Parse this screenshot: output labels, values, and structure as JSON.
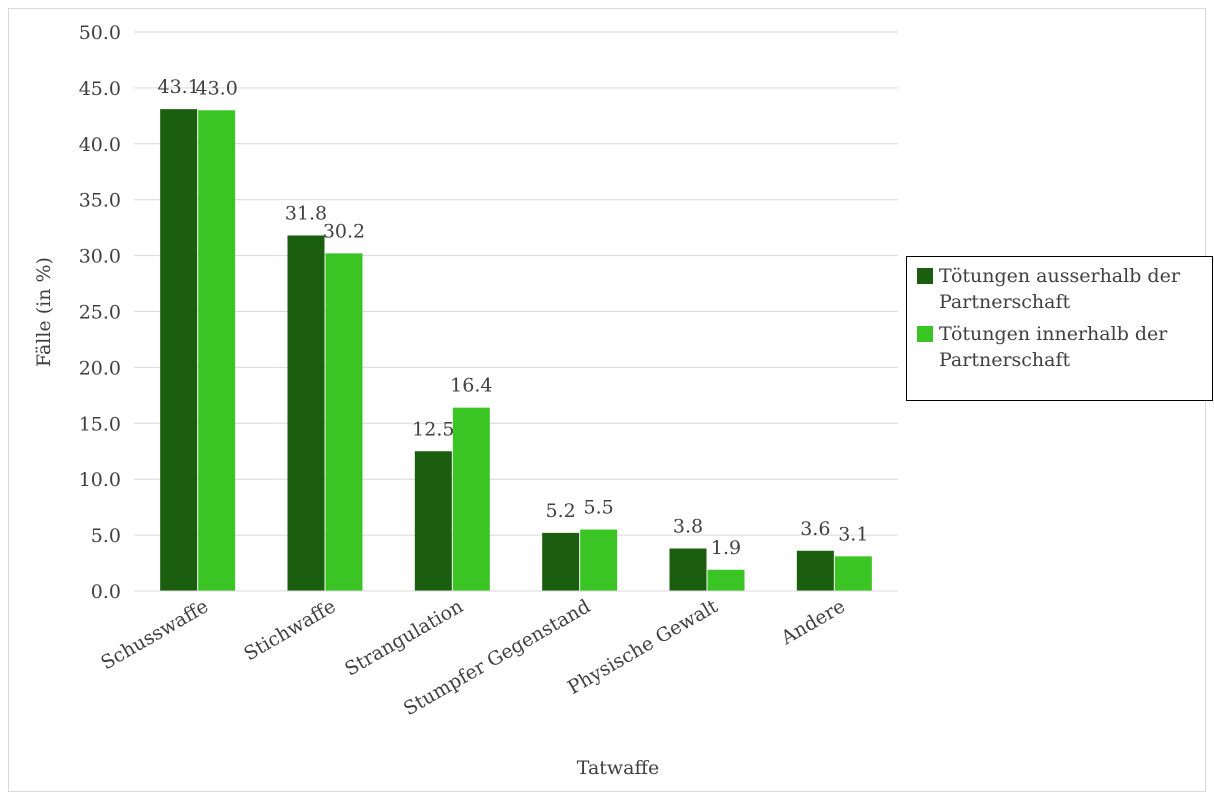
{
  "chart_data": {
    "type": "bar",
    "categories": [
      "Schusswaffe",
      "Stichwaffe",
      "Strangulation",
      "Stumpfer Gegenstand",
      "Physische Gewalt",
      "Andere"
    ],
    "series": [
      {
        "name": "Tötungen ausserhalb der Partnerschaft",
        "color": "#1b5e0f",
        "values": [
          43.1,
          31.8,
          12.5,
          5.2,
          3.8,
          3.6
        ],
        "labels": [
          "43.1",
          "31.8",
          "12.5",
          "5.2",
          "3.8",
          "3.6"
        ]
      },
      {
        "name": "Tötungen innerhalb der Partnerschaft",
        "color": "#3ac524",
        "values": [
          43.0,
          30.2,
          16.4,
          5.5,
          1.9,
          3.1
        ],
        "labels": [
          "43.0",
          "30.2",
          "16.4",
          "5.5",
          "1.9",
          "3.1"
        ]
      }
    ],
    "xlabel": "Tatwaffe",
    "ylabel": "Fälle (in %)",
    "ylim": [
      0,
      50
    ],
    "yticks": [
      "0.0",
      "5.0",
      "10.0",
      "15.0",
      "20.0",
      "25.0",
      "30.0",
      "35.0",
      "40.0",
      "45.0",
      "50.0"
    ],
    "grid": true,
    "legend_position": "right",
    "gridline_color": "#d9d9d9"
  },
  "legend": {
    "item1": {
      "line1": "Tötungen ausserhalb der",
      "line2": "Partnerschaft"
    },
    "item2": {
      "line1": "Tötungen innerhalb der",
      "line2": "Partnerschaft"
    }
  }
}
